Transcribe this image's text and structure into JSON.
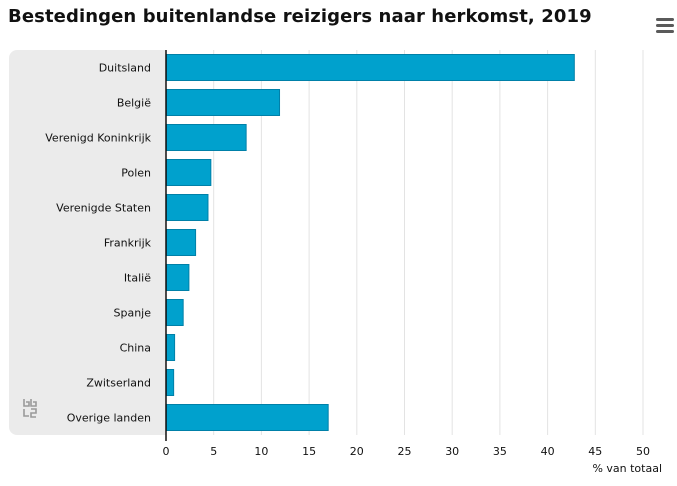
{
  "header": {
    "menu_icon": "hamburger-menu-icon"
  },
  "logo": {
    "icon": "cbs-logo-icon"
  },
  "colors": {
    "bar": "#00a1cd",
    "bar_edge": "#0080a8",
    "grid": "#e3e3e3",
    "panel": "#ebebeb"
  },
  "chart_data": {
    "type": "bar",
    "orientation": "horizontal",
    "title": "Bestedingen buitenlandse reizigers naar herkomst, 2019",
    "xlabel": "% van totaal",
    "ylabel": "",
    "xlim": [
      0,
      50
    ],
    "xticks": [
      0,
      5,
      10,
      15,
      20,
      25,
      30,
      35,
      40,
      45,
      50
    ],
    "grid": true,
    "categories": [
      "Duitsland",
      "België",
      "Verenigd Koninkrijk",
      "Polen",
      "Verenigde Staten",
      "Frankrijk",
      "Italië",
      "Spanje",
      "China",
      "Zwitserland",
      "Overige landen"
    ],
    "values": [
      42.8,
      11.9,
      8.4,
      4.7,
      4.4,
      3.1,
      2.4,
      1.8,
      0.9,
      0.8,
      17.0
    ]
  }
}
